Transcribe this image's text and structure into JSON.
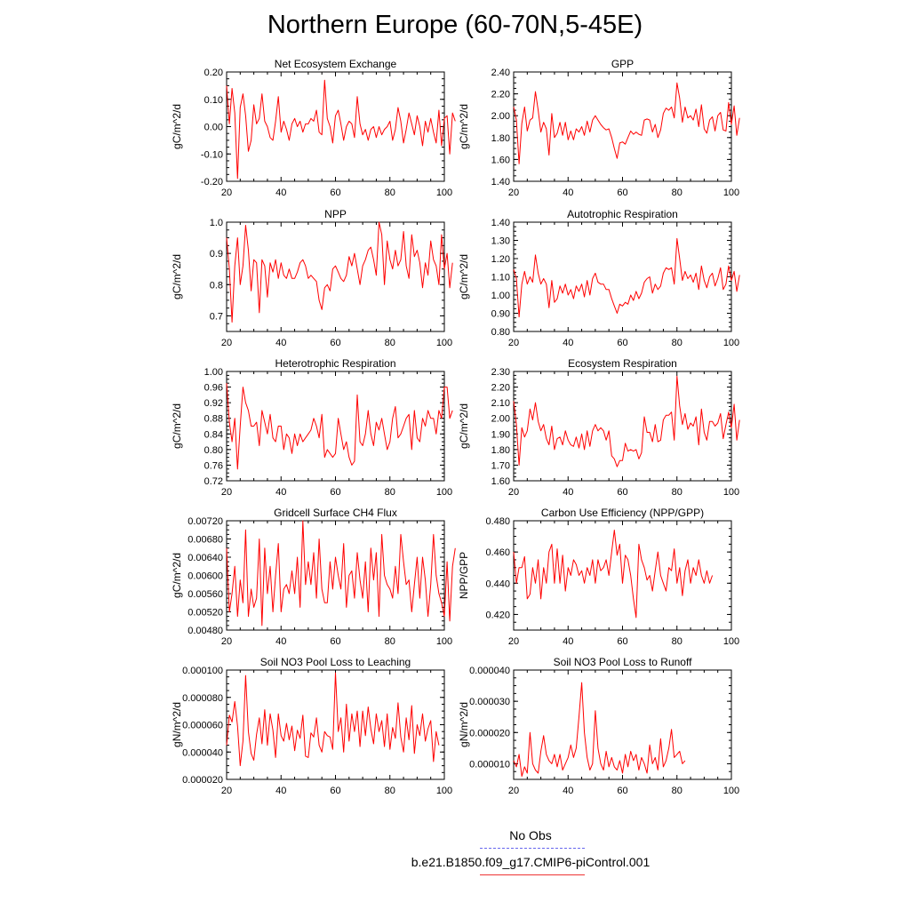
{
  "figure": {
    "title": "Northern Europe (60-70N,5-45E)"
  },
  "legend": {
    "items": [
      {
        "label": "No Obs",
        "color": "#6666ee",
        "dash": true
      },
      {
        "label": "b.e21.B1850.f09_g17.CMIP6-piControl.001",
        "color": "#ee3333",
        "dash": false
      }
    ]
  },
  "series_color": "#ff0000",
  "chart_data": [
    {
      "type": "line",
      "title": "Net Ecosystem Exchange",
      "ylabel": "gC/m^2/d",
      "xlim": [
        20,
        100
      ],
      "ylim": [
        -0.2,
        0.2
      ],
      "yticks": [
        "-0.20",
        "-0.10",
        "0.00",
        "0.10",
        "0.20"
      ],
      "xticks": [
        "20",
        "40",
        "60",
        "80",
        "100"
      ],
      "x_start": 20,
      "values": [
        0.15,
        0.01,
        0.14,
        0.05,
        -0.19,
        0.07,
        0.12,
        0.04,
        -0.09,
        -0.05,
        0.08,
        0.01,
        0.03,
        0.12,
        0.02,
        0.0,
        -0.04,
        -0.05,
        0.02,
        0.11,
        -0.02,
        0.02,
        -0.01,
        -0.05,
        0.01,
        0.03,
        0.0,
        0.02,
        -0.02,
        0.01,
        0.01,
        0.03,
        0.02,
        0.06,
        -0.02,
        -0.03,
        0.17,
        0.03,
        0.0,
        -0.06,
        0.04,
        0.06,
        0.01,
        -0.05,
        0.0,
        0.02,
        0.01,
        -0.04,
        0.11,
        0.01,
        -0.03,
        -0.01,
        -0.05,
        -0.01,
        0.0,
        -0.04,
        0.0,
        -0.03,
        -0.01,
        0.0,
        0.02,
        -0.05,
        -0.01,
        0.07,
        0.02,
        -0.06,
        -0.01,
        0.05,
        0.01,
        -0.03,
        0.04,
        0.0,
        -0.07,
        0.02,
        -0.02,
        0.03,
        -0.02,
        -0.06,
        0.06,
        -0.07,
        0.03,
        0.04,
        -0.1,
        0.05,
        0.02
      ]
    },
    {
      "type": "line",
      "title": "GPP",
      "ylabel": "gC/m^2/d",
      "xlim": [
        20,
        100
      ],
      "ylim": [
        1.4,
        2.4
      ],
      "yticks": [
        "1.40",
        "1.60",
        "1.80",
        "2.00",
        "2.20",
        "2.40"
      ],
      "xticks": [
        "20",
        "40",
        "60",
        "80",
        "100"
      ],
      "x_start": 20,
      "values": [
        2.08,
        1.96,
        1.56,
        1.93,
        2.08,
        1.86,
        1.96,
        1.98,
        2.22,
        2.05,
        1.85,
        1.94,
        1.88,
        1.64,
        2.02,
        1.8,
        1.84,
        1.94,
        1.82,
        1.94,
        1.78,
        1.86,
        1.78,
        1.88,
        1.85,
        1.9,
        1.82,
        1.95,
        1.85,
        1.96,
        2.0,
        1.96,
        1.92,
        1.89,
        1.87,
        1.88,
        1.8,
        1.7,
        1.61,
        1.75,
        1.76,
        1.74,
        1.8,
        1.86,
        1.83,
        1.85,
        1.83,
        1.82,
        1.96,
        1.97,
        1.96,
        1.85,
        1.92,
        1.8,
        1.87,
        2.02,
        2.07,
        2.05,
        2.08,
        1.98,
        2.3,
        2.16,
        1.94,
        2.08,
        1.98,
        2.0,
        1.96,
        2.06,
        1.9,
        2.1,
        1.88,
        1.84,
        1.96,
        1.99,
        1.86,
        2.0,
        2.03,
        1.87,
        1.86,
        2.12,
        1.92,
        2.09,
        1.82,
        1.98
      ]
    },
    {
      "type": "line",
      "title": "NPP",
      "ylabel": "gC/m^2/d",
      "xlim": [
        20,
        100
      ],
      "ylim": [
        0.65,
        1.0
      ],
      "yticks": [
        "0.7",
        "0.8",
        "0.9",
        "1.0"
      ],
      "xticks": [
        "20",
        "40",
        "60",
        "80",
        "100"
      ],
      "x_start": 20,
      "values": [
        0.95,
        0.85,
        0.68,
        0.86,
        0.95,
        0.8,
        0.86,
        0.99,
        0.91,
        0.78,
        0.88,
        0.87,
        0.71,
        0.88,
        0.86,
        0.76,
        0.87,
        0.84,
        0.88,
        0.82,
        0.87,
        0.83,
        0.82,
        0.85,
        0.82,
        0.82,
        0.84,
        0.87,
        0.88,
        0.86,
        0.82,
        0.83,
        0.82,
        0.81,
        0.75,
        0.72,
        0.79,
        0.8,
        0.78,
        0.85,
        0.86,
        0.84,
        0.82,
        0.81,
        0.83,
        0.89,
        0.86,
        0.9,
        0.85,
        0.8,
        0.86,
        0.88,
        0.91,
        0.92,
        0.88,
        0.83,
        1.0,
        0.96,
        0.8,
        0.94,
        0.88,
        0.85,
        0.91,
        0.86,
        0.88,
        0.97,
        0.86,
        0.82,
        0.96,
        0.89,
        0.91,
        0.87,
        0.79,
        0.87,
        0.83,
        0.94,
        0.88,
        0.86,
        0.8,
        0.96,
        0.85,
        0.9,
        0.79,
        0.87
      ]
    },
    {
      "type": "line",
      "title": "Autotrophic Respiration",
      "ylabel": "gC/m^2/d",
      "xlim": [
        20,
        100
      ],
      "ylim": [
        0.8,
        1.4
      ],
      "yticks": [
        "0.80",
        "0.90",
        "1.00",
        "1.10",
        "1.20",
        "1.30",
        "1.40"
      ],
      "xticks": [
        "20",
        "40",
        "60",
        "80",
        "100"
      ],
      "x_start": 20,
      "values": [
        1.14,
        1.09,
        0.88,
        1.06,
        1.13,
        1.06,
        1.1,
        1.07,
        1.22,
        1.12,
        1.06,
        1.09,
        1.06,
        0.93,
        1.08,
        0.96,
        0.98,
        1.05,
        1.01,
        1.06,
        1.0,
        1.03,
        0.98,
        1.05,
        1.02,
        1.06,
        0.99,
        1.08,
        1.0,
        1.09,
        1.12,
        1.07,
        1.06,
        1.06,
        1.03,
        1.03,
        0.98,
        0.94,
        0.9,
        0.95,
        0.94,
        0.96,
        0.95,
        1.0,
        0.97,
        1.02,
        0.98,
        1.01,
        1.07,
        1.09,
        1.1,
        1.01,
        1.06,
        1.03,
        1.05,
        1.12,
        1.15,
        1.14,
        1.15,
        1.06,
        1.31,
        1.2,
        1.08,
        1.13,
        1.09,
        1.11,
        1.07,
        1.12,
        1.03,
        1.16,
        1.08,
        1.04,
        1.1,
        1.12,
        1.05,
        1.09,
        1.15,
        1.03,
        1.06,
        1.16,
        1.08,
        1.13,
        1.02,
        1.11
      ]
    },
    {
      "type": "line",
      "title": "Heterotrophic Respiration",
      "ylabel": "gC/m^2/d",
      "xlim": [
        20,
        100
      ],
      "ylim": [
        0.72,
        1.0
      ],
      "yticks": [
        "0.72",
        "0.76",
        "0.80",
        "0.84",
        "0.88",
        "0.92",
        "0.96",
        "1.00"
      ],
      "xticks": [
        "20",
        "40",
        "60",
        "80",
        "100"
      ],
      "x_start": 20,
      "values": [
        0.97,
        0.87,
        0.82,
        0.88,
        0.75,
        0.86,
        0.96,
        0.92,
        0.9,
        0.86,
        0.86,
        0.87,
        0.81,
        0.9,
        0.87,
        0.84,
        0.89,
        0.83,
        0.82,
        0.86,
        0.86,
        0.8,
        0.84,
        0.83,
        0.79,
        0.84,
        0.81,
        0.84,
        0.82,
        0.83,
        0.84,
        0.85,
        0.88,
        0.86,
        0.83,
        0.89,
        0.78,
        0.8,
        0.79,
        0.78,
        0.79,
        0.88,
        0.84,
        0.8,
        0.82,
        0.78,
        0.76,
        0.77,
        0.94,
        0.82,
        0.81,
        0.84,
        0.9,
        0.84,
        0.81,
        0.87,
        0.85,
        0.88,
        0.84,
        0.8,
        0.82,
        0.88,
        0.91,
        0.83,
        0.84,
        0.86,
        0.88,
        0.89,
        0.8,
        0.9,
        0.83,
        0.82,
        0.88,
        0.86,
        0.9,
        0.88,
        0.88,
        0.84,
        0.9,
        0.88,
        0.96,
        0.96,
        0.88,
        0.9
      ]
    },
    {
      "type": "line",
      "title": "Ecosystem Respiration",
      "ylabel": "gC/m^2/d",
      "xlim": [
        20,
        100
      ],
      "ylim": [
        1.6,
        2.3
      ],
      "yticks": [
        "1.60",
        "1.70",
        "1.80",
        "1.90",
        "2.00",
        "2.10",
        "2.20",
        "2.30"
      ],
      "xticks": [
        "20",
        "40",
        "60",
        "80",
        "100"
      ],
      "x_start": 20,
      "values": [
        2.11,
        1.96,
        1.7,
        1.94,
        1.88,
        1.92,
        2.06,
        1.99,
        2.1,
        1.98,
        1.92,
        1.96,
        1.87,
        1.83,
        1.95,
        1.8,
        1.87,
        1.88,
        1.83,
        1.92,
        1.86,
        1.83,
        1.82,
        1.88,
        1.81,
        1.9,
        1.8,
        1.92,
        1.82,
        1.92,
        1.96,
        1.92,
        1.94,
        1.92,
        1.86,
        1.92,
        1.76,
        1.74,
        1.69,
        1.73,
        1.73,
        1.84,
        1.79,
        1.8,
        1.79,
        1.8,
        1.74,
        1.78,
        2.01,
        1.91,
        1.91,
        1.85,
        1.96,
        1.85,
        1.86,
        1.99,
        2.02,
        2.02,
        2.04,
        1.86,
        2.27,
        2.08,
        1.96,
        2.03,
        1.93,
        1.97,
        1.95,
        2.01,
        1.83,
        2.06,
        1.91,
        1.86,
        1.98,
        1.98,
        1.95,
        1.97,
        2.03,
        1.87,
        1.96,
        2.04,
        1.94,
        2.09,
        1.86,
        1.99
      ]
    },
    {
      "type": "line",
      "title": "Gridcell Surface CH4 Flux",
      "ylabel": "gC/m^2/d",
      "xlim": [
        20,
        100
      ],
      "ylim": [
        0.0048,
        0.0072
      ],
      "yticks": [
        "0.00480",
        "0.00520",
        "0.00560",
        "0.00600",
        "0.00640",
        "0.00680",
        "0.00720"
      ],
      "xticks": [
        "20",
        "40",
        "60",
        "80",
        "100"
      ],
      "x_start": 20,
      "values": [
        0.0066,
        0.0052,
        0.0056,
        0.0062,
        0.0051,
        0.0059,
        0.0054,
        0.007,
        0.0051,
        0.0057,
        0.0053,
        0.0055,
        0.0068,
        0.0049,
        0.0066,
        0.0056,
        0.0062,
        0.0052,
        0.006,
        0.0067,
        0.0052,
        0.0057,
        0.0058,
        0.0056,
        0.0061,
        0.0056,
        0.0064,
        0.0053,
        0.0072,
        0.0058,
        0.0063,
        0.0058,
        0.0065,
        0.0055,
        0.0068,
        0.0057,
        0.0054,
        0.0054,
        0.0063,
        0.0057,
        0.0064,
        0.006,
        0.0057,
        0.0067,
        0.0053,
        0.006,
        0.0061,
        0.0055,
        0.0065,
        0.0059,
        0.0055,
        0.0063,
        0.0052,
        0.0066,
        0.0059,
        0.0065,
        0.0051,
        0.0069,
        0.006,
        0.0058,
        0.0057,
        0.0055,
        0.0062,
        0.0056,
        0.0069,
        0.0063,
        0.0058,
        0.0059,
        0.0052,
        0.0058,
        0.0064,
        0.0055,
        0.0064,
        0.0059,
        0.0051,
        0.0058,
        0.0069,
        0.006,
        0.0056,
        0.0054,
        0.0051,
        0.0063,
        0.005,
        0.0062,
        0.0066
      ]
    },
    {
      "type": "line",
      "title": "Carbon Use Efficiency (NPP/GPP)",
      "ylabel": "NPP/GPP",
      "xlim": [
        20,
        100
      ],
      "ylim": [
        0.41,
        0.48
      ],
      "yticks": [
        "0.420",
        "0.440",
        "0.460",
        "0.480"
      ],
      "xticks": [
        "20",
        "40",
        "60",
        "80",
        "100"
      ],
      "x_start": 20,
      "values": [
        0.46,
        0.44,
        0.45,
        0.45,
        0.457,
        0.43,
        0.433,
        0.45,
        0.44,
        0.455,
        0.43,
        0.45,
        0.44,
        0.46,
        0.465,
        0.44,
        0.462,
        0.44,
        0.458,
        0.435,
        0.45,
        0.445,
        0.455,
        0.452,
        0.445,
        0.448,
        0.44,
        0.45,
        0.445,
        0.455,
        0.44,
        0.455,
        0.448,
        0.45,
        0.455,
        0.445,
        0.46,
        0.474,
        0.458,
        0.465,
        0.44,
        0.458,
        0.455,
        0.445,
        0.43,
        0.418,
        0.465,
        0.455,
        0.45,
        0.442,
        0.445,
        0.435,
        0.448,
        0.46,
        0.445,
        0.44,
        0.435,
        0.45,
        0.448,
        0.462,
        0.44,
        0.45,
        0.432,
        0.448,
        0.455,
        0.44,
        0.45,
        0.445,
        0.455,
        0.445,
        0.44,
        0.448,
        0.44,
        0.445
      ]
    },
    {
      "type": "line",
      "title": "Soil NO3 Pool Loss to Leaching",
      "ylabel": "gN/m^2/d",
      "xlim": [
        20,
        100
      ],
      "ylim": [
        2e-05,
        0.0001
      ],
      "yticks": [
        "0.000020",
        "0.000040",
        "0.000060",
        "0.000080",
        "0.000100"
      ],
      "xticks": [
        "20",
        "40",
        "60",
        "80",
        "100"
      ],
      "x_start": 20,
      "values": [
        4.5e-05,
        6.7e-05,
        6.2e-05,
        7.7e-05,
        5.9e-05,
        3e-05,
        4.8e-05,
        9.6e-05,
        5.5e-05,
        3.9e-05,
        3.4e-05,
        5.3e-05,
        6.5e-05,
        4.6e-05,
        7.1e-05,
        4.5e-05,
        6.8e-05,
        5.6e-05,
        3.6e-05,
        6.8e-05,
        5.2e-05,
        4.8e-05,
        6.1e-05,
        4.9e-05,
        5.9e-05,
        4.1e-05,
        5.6e-05,
        5e-05,
        6.7e-05,
        3.7e-05,
        3.6e-05,
        5.4e-05,
        5.1e-05,
        6.5e-05,
        4.5e-05,
        4e-05,
        5.5e-05,
        5.2e-05,
        5.1e-05,
        4.2e-05,
        9.8e-05,
        5.5e-05,
        6.5e-05,
        4e-05,
        7.5e-05,
        4.8e-05,
        6.8e-05,
        5.5e-05,
        7e-05,
        4.4e-05,
        7e-05,
        5.2e-05,
        7.3e-05,
        5.7e-05,
        4.6e-05,
        6.8e-05,
        5.5e-05,
        6.3e-05,
        4.4e-05,
        6.8e-05,
        4.2e-05,
        5.8e-05,
        5e-05,
        7.6e-05,
        5.1e-05,
        4e-05,
        6.5e-05,
        4.9e-05,
        7.4e-05,
        3.9e-05,
        6e-05,
        5.2e-05,
        6.8e-05,
        4.8e-05,
        5.7e-05,
        6.3e-05,
        3.3e-05,
        5.5e-05,
        4.5e-05
      ]
    },
    {
      "type": "line",
      "title": "Soil NO3 Pool Loss to Runoff",
      "ylabel": "gN/m^2/d",
      "xlim": [
        20,
        100
      ],
      "ylim": [
        5e-06,
        4e-05
      ],
      "yticks": [
        "0.000010",
        "0.000020",
        "0.000030",
        "0.000040"
      ],
      "xticks": [
        "20",
        "40",
        "60",
        "80",
        "100"
      ],
      "x_start": 20,
      "values": [
        1.1e-05,
        9e-06,
        1.3e-05,
        6e-06,
        9e-06,
        7e-06,
        2e-05,
        1e-05,
        8e-06,
        7e-06,
        1.4e-05,
        1.9e-05,
        1.3e-05,
        1.1e-05,
        1e-05,
        1.3e-05,
        9e-06,
        1.3e-05,
        8e-06,
        1e-05,
        1.2e-05,
        1.6e-05,
        1.2e-05,
        1.5e-05,
        2.5e-05,
        3.6e-05,
        2e-05,
        1.2e-05,
        8e-06,
        1e-05,
        2.7e-05,
        1.5e-05,
        1e-05,
        8e-06,
        1.4e-05,
        9e-06,
        1.2e-05,
        9e-06,
        8e-06,
        1.1e-05,
        7e-06,
        1.3e-05,
        9e-06,
        1.4e-05,
        1.1e-05,
        1.3e-05,
        8e-06,
        1.2e-05,
        1e-05,
        7e-06,
        1.6e-05,
        1e-05,
        1.2e-05,
        8e-06,
        1.8e-05,
        9e-06,
        1.1e-05,
        1.5e-05,
        2.1e-05,
        1.2e-05,
        1.3e-05,
        1.4e-05,
        1e-05,
        1.1e-05
      ]
    }
  ]
}
